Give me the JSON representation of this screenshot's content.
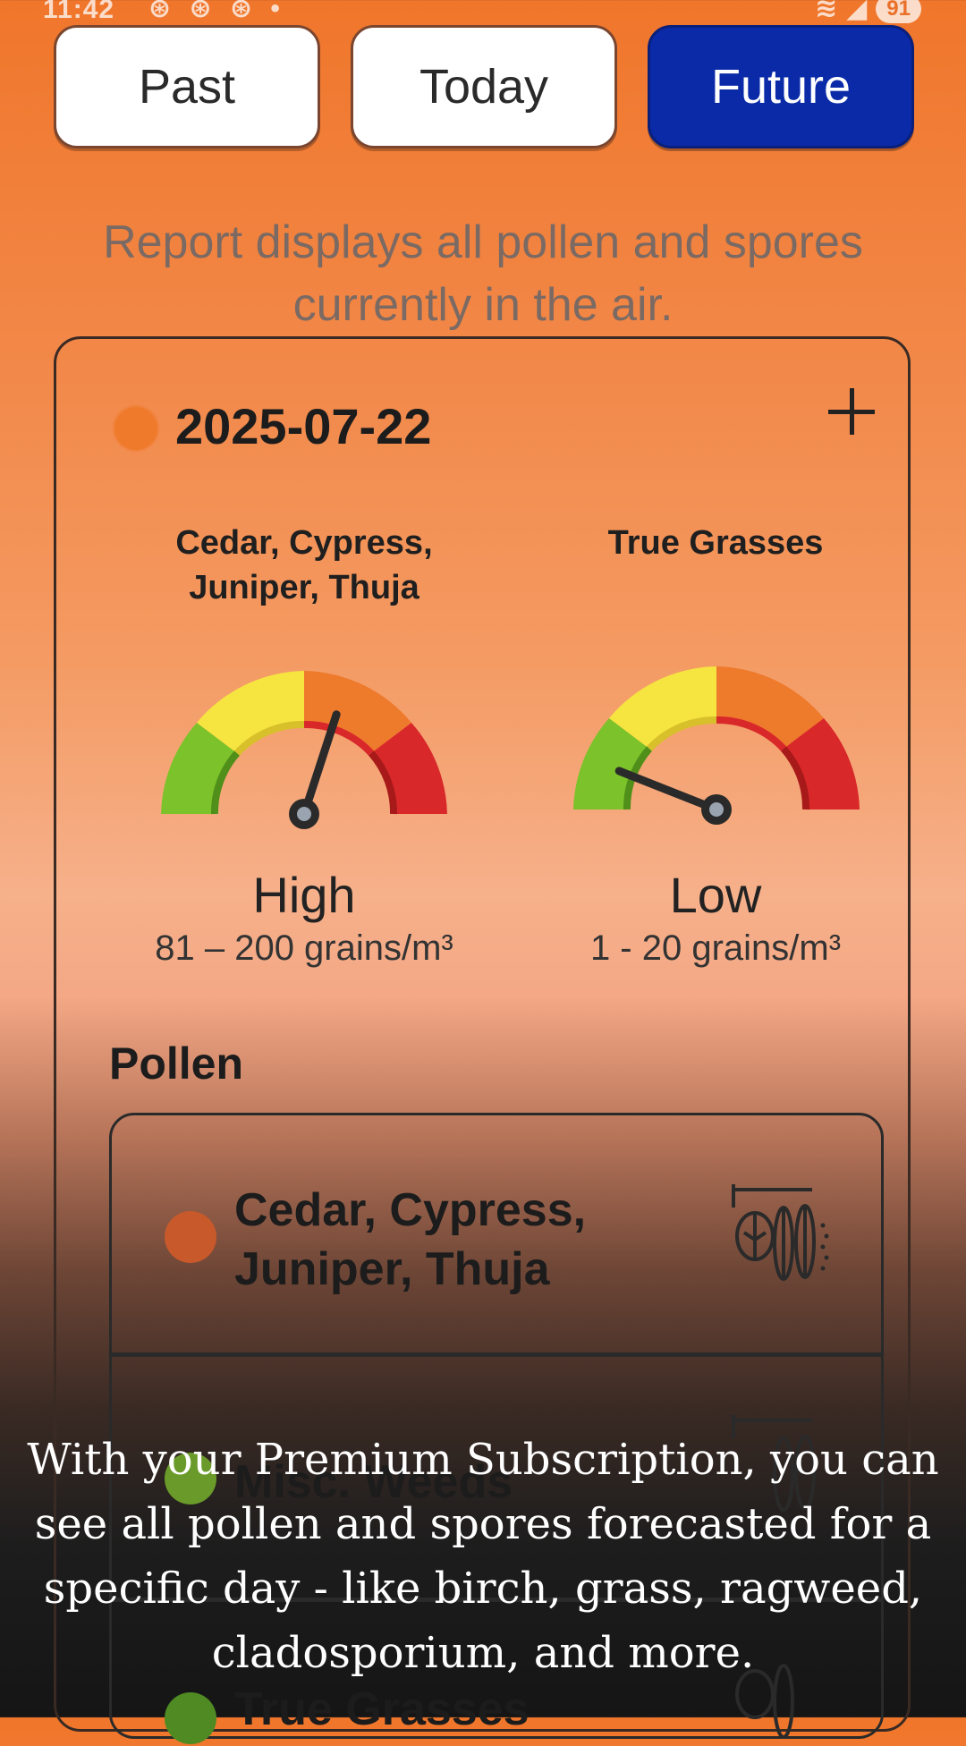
{
  "status_bar": {
    "time": "11:42",
    "notification_dots": "⊛ ⊛ ⊛ •",
    "battery": "91"
  },
  "tabs": [
    {
      "label": "Past",
      "active": false
    },
    {
      "label": "Today",
      "active": false
    },
    {
      "label": "Future",
      "active": true
    }
  ],
  "intro_text": "Report displays all pollen and spores currently in the air.",
  "card": {
    "date": "2025-07-22",
    "gauges": [
      {
        "name": "Cedar, Cypress, Juniper, Thuja",
        "level": "High",
        "range": "81 – 200 grains/m³",
        "level_fraction": 0.6
      },
      {
        "name": "True Grasses",
        "level": "Low",
        "range": "1 - 20 grains/m³",
        "level_fraction": 0.12
      }
    ],
    "pollen_heading": "Pollen",
    "pollen_items": [
      {
        "label": "Cedar, Cypress, Juniper, Thuja",
        "dot_color": "#c8592a"
      },
      {
        "label": "Misc. Weeds",
        "dot_color": "#6a9a2a"
      },
      {
        "label": "True Grasses",
        "dot_color": "#4f8a22"
      }
    ]
  },
  "caption": "With your Premium Subscription, you can see all pollen and spores forecasted for a specific day - like birch, grass, ragweed, cladosporium, and more.",
  "colors": {
    "accent": "#0a2aa8",
    "orange": "#f0762b"
  }
}
